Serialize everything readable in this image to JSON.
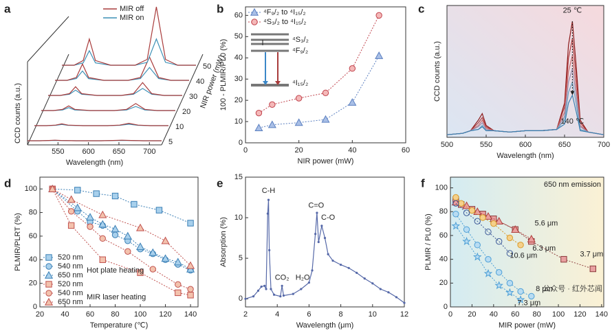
{
  "chart_data": [
    {
      "type": "waterfall",
      "panel_label": "a",
      "x": [
        500,
        520,
        535,
        545,
        555,
        580,
        620,
        640,
        655,
        670,
        690,
        720
      ],
      "xlim": [
        500,
        720
      ],
      "xticks": [
        550,
        600,
        650,
        700
      ],
      "ylim": [
        0,
        100
      ],
      "xlabel": "Wavelength (nm)",
      "ylabel": "CCD counts (a.u.)",
      "depth_values": [
        5,
        10,
        20,
        30,
        40,
        50
      ],
      "depth_label": "NIR power (mW)",
      "series": [
        {
          "name": "MIR off",
          "color": "#a83b3b",
          "values": [
            [
              0,
              0,
              0.5,
              1,
              0.5,
              0,
              0,
              0.5,
              1,
              0.5,
              0,
              0
            ],
            [
              0,
              0,
              1,
              3,
              1,
              0,
              0,
              1,
              4,
              1,
              0,
              0
            ],
            [
              0,
              0,
              2,
              8,
              2,
              0,
              0,
              2,
              12,
              2,
              0,
              0
            ],
            [
              0,
              0,
              3,
              15,
              3,
              0,
              0,
              3,
              22,
              3,
              0,
              0
            ],
            [
              0,
              0,
              5,
              28,
              5,
              0,
              0,
              5,
              40,
              5,
              0,
              0
            ],
            [
              0,
              0,
              8,
              45,
              8,
              0,
              0,
              10,
              100,
              10,
              0,
              0
            ]
          ]
        },
        {
          "name": "MIR on",
          "color": "#3b8fb5",
          "values": [
            [
              0,
              0,
              0.3,
              0.6,
              0.3,
              0,
              0,
              0.3,
              0.6,
              0.3,
              0,
              0
            ],
            [
              0,
              0,
              0.6,
              2,
              0.6,
              0,
              0,
              0.6,
              2.5,
              0.6,
              0,
              0
            ],
            [
              0,
              0,
              1,
              5,
              1,
              0,
              0,
              1,
              7,
              1,
              0,
              0
            ],
            [
              0,
              0,
              2,
              9,
              2,
              0,
              0,
              2,
              12,
              2,
              0,
              0
            ],
            [
              0,
              0,
              3,
              16,
              3,
              0,
              0,
              3,
              22,
              3,
              0,
              0
            ],
            [
              0,
              0,
              4,
              25,
              4,
              0,
              0,
              5,
              45,
              5,
              0,
              0
            ]
          ]
        }
      ]
    },
    {
      "type": "line",
      "panel_label": "b",
      "xlim": [
        0,
        60
      ],
      "xticks": [
        0,
        20,
        40,
        60
      ],
      "ylim": [
        0,
        64
      ],
      "yticks": [
        0,
        10,
        20,
        30,
        40,
        50,
        60
      ],
      "xlabel": "NIR power (mW)",
      "ylabel": "100 - PLMIR/PL0 (%)",
      "inset_labels": [
        "⁴S₃/₂",
        "⁴F₉/₂",
        "⁴I₁₅/₂"
      ],
      "series": [
        {
          "name": "⁴F₉/₂ to ⁴I₁₅/₂",
          "color": "#5a7fc0",
          "fill": "#a9bfe6",
          "marker": "triangle",
          "dashed": true,
          "x": [
            5,
            10,
            20,
            30,
            40,
            50
          ],
          "values": [
            7,
            8.5,
            9.5,
            11,
            19,
            41
          ]
        },
        {
          "name": "⁴S₃/₂ to ⁴I₁₅/₂",
          "color": "#c0404a",
          "fill": "#f4b8b8",
          "marker": "circle",
          "dashed": true,
          "x": [
            5,
            10,
            20,
            30,
            40,
            50
          ],
          "values": [
            14,
            18,
            21,
            23.5,
            35,
            60
          ]
        }
      ]
    },
    {
      "type": "line",
      "panel_label": "c",
      "x": [
        500,
        520,
        530,
        540,
        545,
        550,
        560,
        580,
        600,
        620,
        640,
        650,
        655,
        660,
        665,
        670,
        680,
        700
      ],
      "xlim": [
        500,
        700
      ],
      "xticks": [
        500,
        550,
        600,
        650,
        700
      ],
      "ylim": [
        0,
        100
      ],
      "xlabel": "Wavelength (nm)",
      "ylabel": "CCD counts (a.u.)",
      "annotations": [
        "25 ℃",
        "140 ℃"
      ],
      "series": [
        {
          "color": "#8b1a1a",
          "values": [
            2,
            3,
            5,
            13,
            18,
            9,
            5,
            4,
            5,
            5,
            6,
            26,
            70,
            88,
            53,
            13,
            4,
            2
          ]
        },
        {
          "color": "#b03a3a",
          "values": [
            2,
            3,
            5,
            11,
            15,
            8,
            5,
            4,
            5,
            5,
            6,
            23,
            60,
            75,
            45,
            11,
            4,
            2
          ]
        },
        {
          "color": "#c86a6a",
          "values": [
            2,
            3,
            5,
            9,
            13,
            7,
            5,
            4,
            5,
            5,
            6,
            19,
            50,
            62,
            37,
            9,
            4,
            2
          ]
        },
        {
          "color": "#9a8fb0",
          "values": [
            2,
            3,
            5,
            8,
            11,
            6,
            5,
            4,
            5,
            5,
            6,
            16,
            42,
            52,
            31,
            8,
            4,
            2
          ]
        },
        {
          "color": "#6aa0c0",
          "values": [
            2,
            3,
            5,
            6,
            9,
            5,
            5,
            4,
            5,
            5,
            6,
            13,
            34,
            42,
            25,
            6,
            4,
            2
          ]
        },
        {
          "color": "#3a7fb0",
          "values": [
            2,
            3,
            5,
            6,
            8,
            5,
            5,
            4,
            5,
            5,
            6,
            10,
            26,
            32,
            19,
            5,
            4,
            2
          ]
        }
      ]
    },
    {
      "type": "line",
      "panel_label": "d",
      "xlim": [
        20,
        146
      ],
      "xticks": [
        20,
        40,
        60,
        80,
        100,
        120,
        140
      ],
      "ylim": [
        0,
        110
      ],
      "yticks": [
        0,
        20,
        40,
        60,
        80,
        100
      ],
      "xlabel": "Temperature (℃)",
      "ylabel": "PLMIR/PLRT (%)",
      "legend_groups": [
        {
          "label": "Hot plate heating",
          "color": "#3a87c8"
        },
        {
          "label": "MIR laser heating",
          "color": "#c0504d"
        }
      ],
      "series": [
        {
          "name": "520 nm",
          "color": "#3a7fb5",
          "fill": "#a8d0ec",
          "marker": "square",
          "dashed": true,
          "x": [
            30,
            50,
            65,
            80,
            95,
            115,
            140
          ],
          "values": [
            100,
            99,
            96,
            94,
            87,
            82,
            71
          ]
        },
        {
          "name": "540 nm",
          "color": "#3a7fb5",
          "fill": "#a8d0ec",
          "marker": "circle",
          "dashed": true,
          "x": [
            30,
            50,
            60,
            70,
            80,
            90,
            100,
            110,
            120,
            130,
            140
          ],
          "values": [
            100,
            81,
            72,
            69,
            61,
            56,
            49,
            45,
            40,
            36,
            31
          ]
        },
        {
          "name": "650 nm",
          "color": "#3a7fb5",
          "fill": "#a8d0ec",
          "marker": "triangle",
          "dashed": true,
          "x": [
            30,
            50,
            60,
            70,
            80,
            90,
            100,
            110,
            120,
            130,
            140
          ],
          "values": [
            100,
            84,
            76,
            70,
            66,
            60,
            51,
            46,
            41,
            38,
            32
          ]
        },
        {
          "name": "520 nm",
          "color": "#c0504d",
          "fill": "#f3c2ad",
          "marker": "square",
          "dashed": true,
          "x": [
            30,
            45,
            70,
            100,
            130,
            140
          ],
          "values": [
            100,
            69,
            40,
            29,
            12,
            10
          ]
        },
        {
          "name": "540 nm",
          "color": "#c0504d",
          "fill": "#f3c2ad",
          "marker": "circle",
          "dashed": true,
          "x": [
            30,
            45,
            60,
            70,
            90,
            110,
            130,
            140
          ],
          "values": [
            100,
            81,
            68,
            58,
            47,
            32,
            19,
            15
          ]
        },
        {
          "name": "650 nm",
          "color": "#c0504d",
          "fill": "#f3c2ad",
          "marker": "triangle",
          "dashed": true,
          "x": [
            30,
            45,
            70,
            100,
            120,
            140
          ],
          "values": [
            100,
            91,
            78,
            67,
            56,
            35
          ]
        }
      ]
    },
    {
      "type": "line",
      "panel_label": "e",
      "xlim": [
        2,
        12
      ],
      "xticks": [
        2,
        4,
        6,
        8,
        10,
        12
      ],
      "ylim": [
        -1,
        15
      ],
      "yticks": [
        0,
        5,
        10,
        15
      ],
      "xlabel": "Wavelength (μm)",
      "ylabel": "Absorption (%)",
      "annotations": [
        "C-H",
        "CO₂",
        "H₂O",
        "C=O",
        "C-O"
      ],
      "series": [
        {
          "color": "#5568a8",
          "marker": "dot",
          "x": [
            2,
            2.5,
            2.8,
            3.0,
            3.2,
            3.3,
            3.4,
            3.45,
            3.5,
            3.6,
            3.8,
            4.2,
            4.3,
            4.4,
            5,
            5.5,
            6,
            6.2,
            6.4,
            6.5,
            6.6,
            6.8,
            7,
            7.2,
            7.5,
            8,
            8.5,
            9,
            9.5,
            10,
            10.5,
            11,
            11.5,
            12
          ],
          "values": [
            0,
            0.3,
            1,
            1.5,
            1.6,
            1.2,
            10.5,
            12.2,
            6,
            1.2,
            0.5,
            0.3,
            1.6,
            0.4,
            0.6,
            1.2,
            2,
            3.5,
            8,
            10.6,
            7,
            9,
            7.5,
            5.5,
            4.7,
            4.2,
            3.8,
            3.2,
            2.5,
            1.9,
            1.2,
            0.8,
            0.2,
            -0.5
          ]
        }
      ]
    },
    {
      "type": "line",
      "panel_label": "f",
      "title": "650 nm emission",
      "xlim": [
        0,
        142
      ],
      "xticks": [
        0,
        20,
        40,
        60,
        80,
        100,
        120,
        140
      ],
      "ylim": [
        0,
        109
      ],
      "yticks": [
        0,
        20,
        40,
        60,
        80,
        100
      ],
      "xlabel": "MIR power (mW)",
      "ylabel": "PLMIR / PL0 (%)",
      "watermark": "公众号 · 红外芯闻",
      "series": [
        {
          "name": "3.7 μm",
          "color": "#8b3a3a",
          "fill": "#e8a0a0",
          "marker": "square",
          "dashed": true,
          "x": [
            5,
            10,
            20,
            30,
            40,
            60,
            75,
            105,
            132
          ],
          "values": [
            90,
            86,
            82,
            78,
            74,
            65,
            55,
            40,
            32
          ]
        },
        {
          "name": "5.6 μm",
          "color": "#b0403d",
          "fill": "#eaa0a0",
          "marker": "triangle",
          "dashed": true,
          "x": [
            5,
            15,
            25,
            35,
            45,
            60,
            75
          ],
          "values": [
            88,
            85,
            80,
            76,
            72,
            65,
            57
          ]
        },
        {
          "name": "6.3 μm",
          "color": "#d99a2a",
          "fill": "#f5d08a",
          "marker": "circle",
          "dashed": true,
          "x": [
            5,
            10,
            20,
            30,
            40,
            55,
            65
          ],
          "values": [
            92,
            87,
            81,
            75,
            70,
            58,
            52
          ]
        },
        {
          "name": "10.6 μm",
          "color": "#3d5a99",
          "fill": "none",
          "marker": "circle",
          "dashed": true,
          "x": [
            5,
            15,
            25,
            35,
            45,
            55
          ],
          "values": [
            87,
            79,
            72,
            63,
            55,
            45
          ]
        },
        {
          "name": "8 μm",
          "color": "#4d9fd6",
          "fill": "#b8dcf2",
          "marker": "circle",
          "dashed": true,
          "x": [
            5,
            15,
            25,
            35,
            45,
            55,
            65,
            75
          ],
          "values": [
            78,
            65,
            52,
            40,
            29,
            20,
            13,
            9
          ]
        },
        {
          "name": "7.3 μm",
          "color": "#4d9fd6",
          "fill": "#b8dcf2",
          "marker": "star",
          "dashed": true,
          "x": [
            5,
            15,
            25,
            35,
            45,
            55,
            65
          ],
          "values": [
            68,
            55,
            42,
            28,
            18,
            12,
            6
          ]
        }
      ]
    }
  ]
}
